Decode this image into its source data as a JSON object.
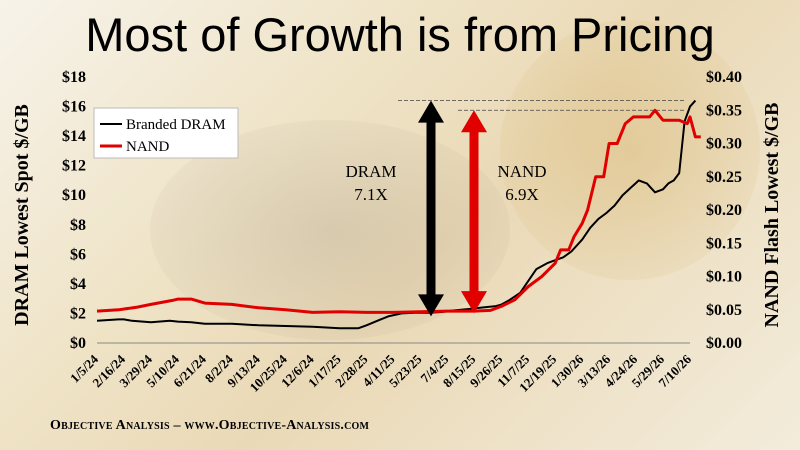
{
  "title": "Most of Growth is from Pricing",
  "footer": "Objective Analysis – www.Objective-Analysis.com",
  "chart_data": {
    "type": "line",
    "x_tick_labels": [
      "1/5/24",
      "2/16/24",
      "3/29/24",
      "5/10/24",
      "6/21/24",
      "8/2/24",
      "9/13/24",
      "10/25/24",
      "12/6/24",
      "1/17/25",
      "2/28/25",
      "4/11/25",
      "5/23/25",
      "7/4/25",
      "8/15/25",
      "9/26/25",
      "11/7/25",
      "12/19/25",
      "1/30/26",
      "3/13/26",
      "4/24/26",
      "5/29/26",
      "7/10/26"
    ],
    "y_left": {
      "label": "DRAM Lowest Spot $/GB",
      "ticks": [
        "$0",
        "$2",
        "$4",
        "$6",
        "$8",
        "$10",
        "$12",
        "$14",
        "$16",
        "$18"
      ],
      "min": 0,
      "max": 18
    },
    "y_right": {
      "label": "NAND Flash Lowest $/GB",
      "ticks": [
        "$0.00",
        "$0.05",
        "$0.10",
        "$0.15",
        "$0.20",
        "$0.25",
        "$0.30",
        "$0.35",
        "$0.40"
      ],
      "min": 0,
      "max": 0.4
    },
    "series": [
      {
        "name": "Branded DRAM",
        "axis": "left",
        "color": "#000000",
        "x": [
          0,
          0.8,
          1,
          1.3,
          2,
          2.7,
          3,
          3.5,
          4,
          5,
          6,
          7,
          8,
          8.5,
          9,
          9.7,
          10,
          10.4,
          10.8,
          11.3,
          11.8,
          12.3,
          12.8,
          13.2,
          13.8,
          14.3,
          14.8,
          15,
          15.3,
          15.7,
          16,
          16.3,
          16.7,
          17,
          17.3,
          17.6,
          18,
          18.3,
          18.6,
          18.9,
          19.2,
          19.5,
          19.8,
          20.1,
          20.4,
          20.7,
          21,
          21.2,
          21.4,
          21.6,
          21.8,
          22,
          22.2
        ],
        "y": [
          1.5,
          1.6,
          1.6,
          1.5,
          1.4,
          1.5,
          1.45,
          1.4,
          1.3,
          1.3,
          1.2,
          1.15,
          1.1,
          1.05,
          1.0,
          1.0,
          1.2,
          1.5,
          1.8,
          2.0,
          2.05,
          2.05,
          2.1,
          2.2,
          2.3,
          2.4,
          2.5,
          2.6,
          2.9,
          3.4,
          4.2,
          5.0,
          5.4,
          5.6,
          5.8,
          6.2,
          7.0,
          7.8,
          8.4,
          8.8,
          9.3,
          10.0,
          10.5,
          11.0,
          10.8,
          10.2,
          10.4,
          10.8,
          11.0,
          11.5,
          15.0,
          16.0,
          16.4
        ]
      },
      {
        "name": "NAND",
        "axis": "right",
        "color": "#e00000",
        "x": [
          0,
          0.8,
          1.5,
          2,
          2.8,
          3,
          3.5,
          4,
          5,
          6,
          7,
          8,
          9,
          10,
          11,
          12,
          13,
          14,
          14.6,
          15,
          15.5,
          16,
          16.5,
          17,
          17.2,
          17.5,
          17.7,
          18,
          18.2,
          18.5,
          18.8,
          19,
          19.3,
          19.6,
          19.9,
          20.2,
          20.5,
          20.7,
          20.9,
          21,
          21.3,
          21.6,
          21.9,
          22,
          22.2,
          22.4
        ],
        "y": [
          0.048,
          0.05,
          0.054,
          0.058,
          0.064,
          0.066,
          0.066,
          0.06,
          0.058,
          0.053,
          0.05,
          0.046,
          0.047,
          0.046,
          0.046,
          0.047,
          0.048,
          0.048,
          0.049,
          0.055,
          0.065,
          0.085,
          0.1,
          0.12,
          0.14,
          0.14,
          0.16,
          0.18,
          0.2,
          0.25,
          0.25,
          0.3,
          0.3,
          0.33,
          0.34,
          0.34,
          0.34,
          0.35,
          0.34,
          0.335,
          0.335,
          0.335,
          0.33,
          0.34,
          0.31,
          0.31
        ]
      }
    ],
    "annotations": [
      {
        "text": "DRAM",
        "text2": "7.1X"
      },
      {
        "text": "NAND",
        "text2": "6.9X"
      }
    ],
    "legend_position": "top-left"
  }
}
